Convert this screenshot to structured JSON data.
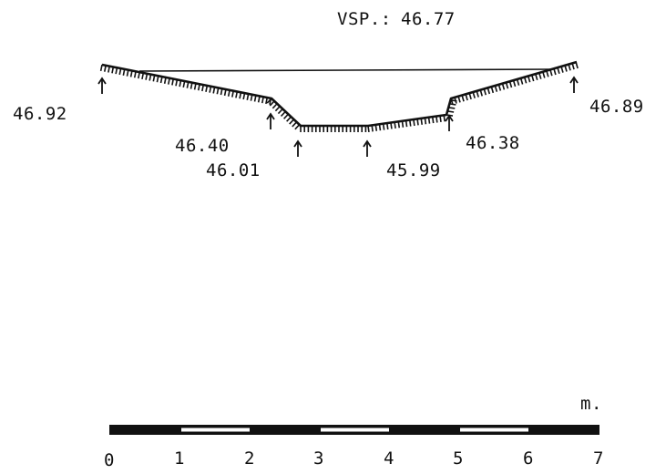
{
  "water_level": {
    "label": "VSP.:",
    "value": "46.77"
  },
  "elevations": [
    {
      "id": "left-bank-top",
      "value": "46.92"
    },
    {
      "id": "left-toe",
      "value": "46.40"
    },
    {
      "id": "left-bottom",
      "value": "46.01"
    },
    {
      "id": "center-bottom",
      "value": "45.99"
    },
    {
      "id": "right-toe",
      "value": "46.38"
    },
    {
      "id": "right-bank-top",
      "value": "46.89"
    }
  ],
  "scale_bar": {
    "unit": "m.",
    "ticks": [
      "0",
      "1",
      "2",
      "3",
      "4",
      "5",
      "6",
      "7"
    ]
  },
  "colors": {
    "ink": "#111111",
    "paper": "#ffffff",
    "scale_light": "#ffffff",
    "scale_dark": "#111111"
  }
}
